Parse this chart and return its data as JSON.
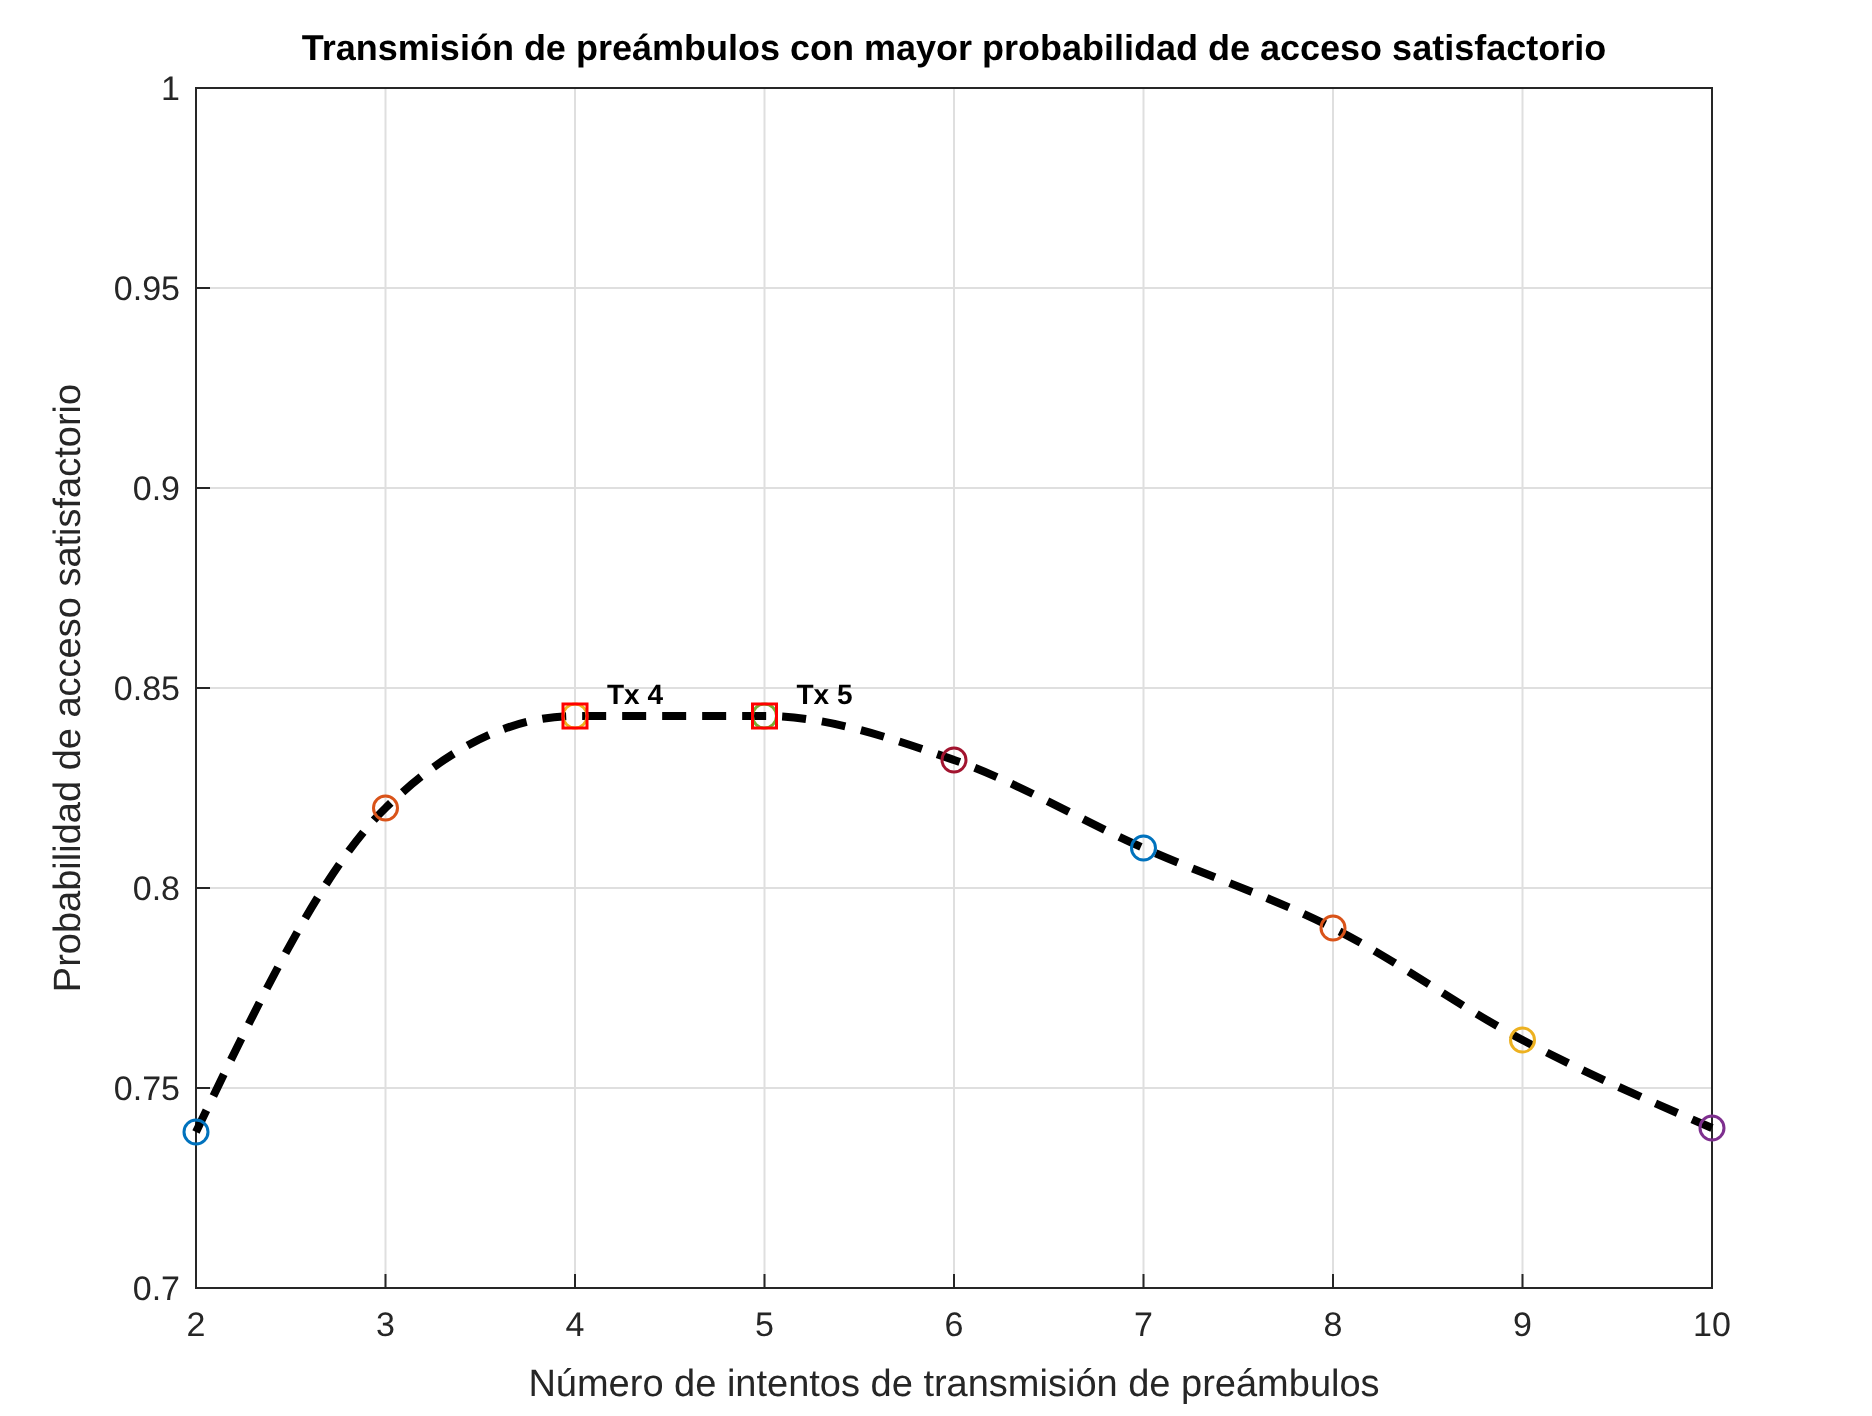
{
  "chart_data": {
    "type": "line",
    "title": "Transmisión de preámbulos con mayor probabilidad de acceso satisfactorio",
    "xlabel": "Número de intentos de transmisión de preámbulos",
    "ylabel": "Probabilidad de acceso satisfactorio",
    "x": [
      2,
      3,
      4,
      5,
      6,
      7,
      8,
      9,
      10
    ],
    "series": [
      {
        "color": "#000000",
        "line_style": "dashed",
        "marker": "none",
        "values": [
          0.739,
          0.82,
          0.843,
          0.843,
          0.832,
          0.81,
          0.79,
          0.762,
          0.74
        ]
      },
      {
        "type": "scatter",
        "marker": "circle",
        "colors": [
          "#0072bd",
          "#d95319",
          "#edb120",
          "#77ac30",
          "#a2142f",
          "#0072bd",
          "#d95319",
          "#edb120",
          "#7e2f8e"
        ],
        "values": [
          0.739,
          0.82,
          0.843,
          0.843,
          0.832,
          0.81,
          0.79,
          0.762,
          0.74
        ]
      },
      {
        "type": "scatter",
        "marker": "square",
        "color": "#ff0000",
        "x": [
          4,
          5
        ],
        "values": [
          0.843,
          0.843
        ]
      }
    ],
    "annotations": [
      {
        "text": "Tx 4",
        "x": 4,
        "y": 0.843
      },
      {
        "text": "Tx 5",
        "x": 5,
        "y": 0.843
      }
    ],
    "xlim": [
      2,
      10
    ],
    "xticks": [
      2,
      3,
      4,
      5,
      6,
      7,
      8,
      9,
      10
    ],
    "ylim": [
      0.7,
      1
    ],
    "yticks": [
      0.7,
      0.75,
      0.8,
      0.85,
      0.9,
      0.95,
      1
    ],
    "grid": true
  }
}
